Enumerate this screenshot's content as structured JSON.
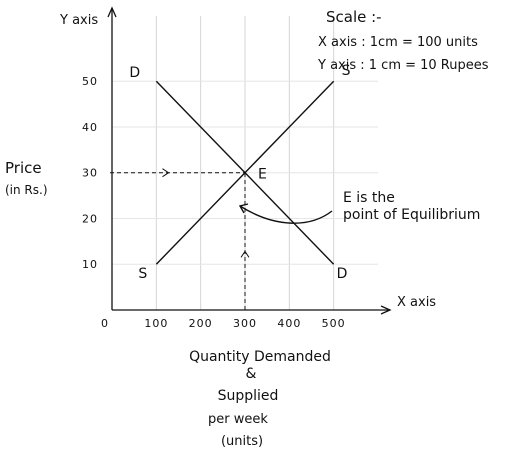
{
  "chart_data": {
    "type": "line",
    "xlabel": "X axis",
    "ylabel": "Y axis",
    "y_title": [
      "Price",
      "(in Rs.)"
    ],
    "x_title": [
      "Quantity Demanded",
      "&",
      "Supplied",
      "per week",
      "(units)"
    ],
    "scale": {
      "title": "Scale :-",
      "x": "X axis : 1cm = 100 units",
      "y": "Y axis : 1 cm = 10 Rupees"
    },
    "origin_label": "0",
    "x_ticks": [
      100,
      200,
      300,
      400,
      500
    ],
    "y_ticks": [
      10,
      20,
      30,
      40,
      50
    ],
    "xlim": [
      0,
      600
    ],
    "ylim": [
      0,
      66
    ],
    "grid": true,
    "series": [
      {
        "name": "D",
        "start_label": "D",
        "end_label": "D",
        "x": [
          100,
          500
        ],
        "y": [
          50,
          10
        ]
      },
      {
        "name": "S",
        "start_label": "S",
        "end_label": "S",
        "x": [
          100,
          500
        ],
        "y": [
          10,
          50
        ]
      }
    ],
    "equilibrium": {
      "label": "E",
      "x": 300,
      "y": 30,
      "annotation": [
        "E is the",
        "point of Equilibrium"
      ]
    }
  }
}
